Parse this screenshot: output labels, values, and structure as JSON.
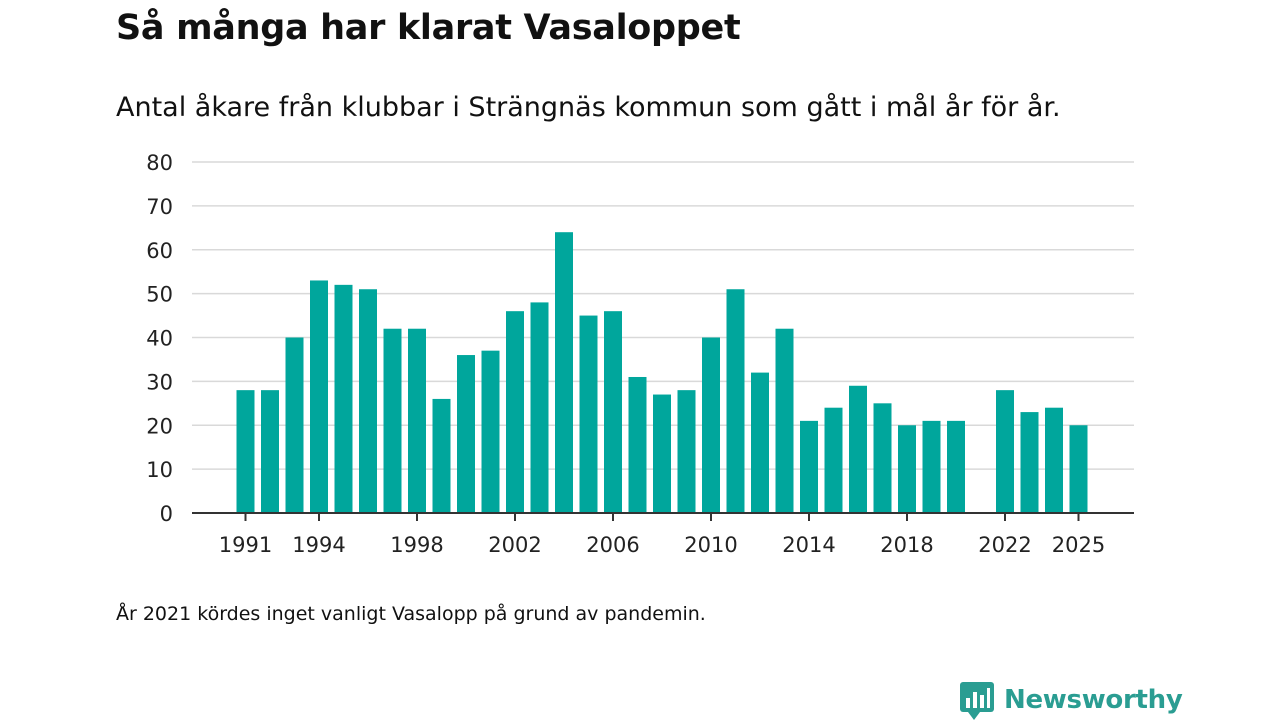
{
  "header": {
    "title": "Så många har klarat Vasaloppet",
    "subtitle": "Antal åkare från klubbar i Strängnäs kommun som gått i mål år för år."
  },
  "footnote": "År 2021 kördes inget vanligt Vasalopp på grund av pandemin.",
  "brand": {
    "name": "Newsworthy",
    "icon": "newsworthy-logo-icon"
  },
  "colors": {
    "bar": "#00a69c",
    "grid": "#d9d9d9",
    "axis": "#333333",
    "brand": "#2a9d92"
  },
  "chart_data": {
    "type": "bar",
    "title": "Så många har klarat Vasaloppet",
    "subtitle": "Antal åkare från klubbar i Strängnäs kommun som gått i mål år för år.",
    "xlabel": "",
    "ylabel": "",
    "ylim": [
      0,
      80
    ],
    "yticks": [
      0,
      10,
      20,
      30,
      40,
      50,
      60,
      70,
      80
    ],
    "xticks": [
      1991,
      1994,
      1998,
      2002,
      2006,
      2010,
      2014,
      2018,
      2022,
      2025
    ],
    "grid": true,
    "categories": [
      1991,
      1992,
      1993,
      1994,
      1995,
      1996,
      1997,
      1998,
      1999,
      2000,
      2001,
      2002,
      2003,
      2004,
      2005,
      2006,
      2007,
      2008,
      2009,
      2010,
      2011,
      2012,
      2013,
      2014,
      2015,
      2016,
      2017,
      2018,
      2019,
      2020,
      2021,
      2022,
      2023,
      2024,
      2025
    ],
    "values": [
      28,
      28,
      40,
      53,
      52,
      51,
      42,
      42,
      26,
      36,
      37,
      46,
      48,
      64,
      45,
      46,
      31,
      27,
      28,
      40,
      51,
      32,
      42,
      21,
      24,
      29,
      25,
      20,
      21,
      21,
      null,
      28,
      23,
      24,
      20
    ]
  }
}
